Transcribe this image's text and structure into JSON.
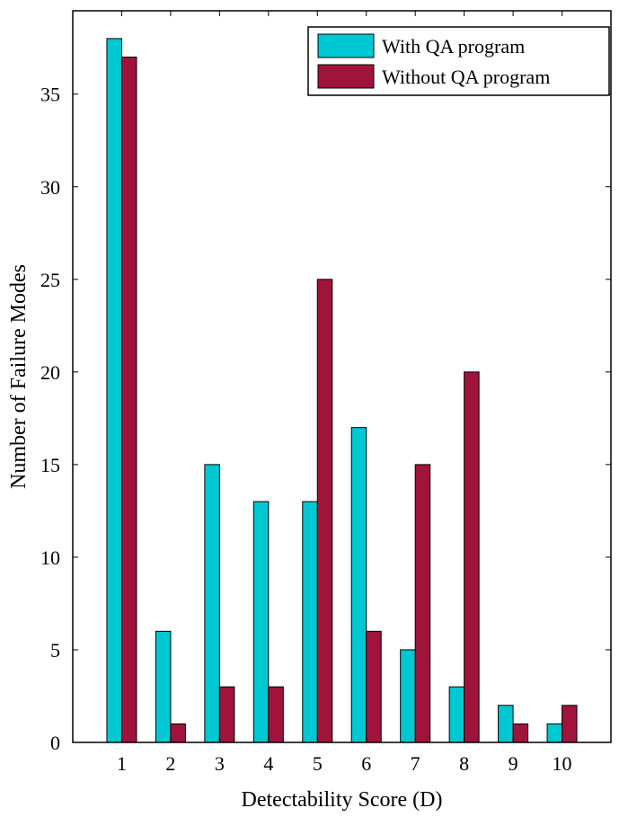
{
  "chart_data": {
    "type": "bar",
    "categories": [
      "1",
      "2",
      "3",
      "4",
      "5",
      "6",
      "7",
      "8",
      "9",
      "10"
    ],
    "series": [
      {
        "name": "With QA program",
        "color": "#00c8d2",
        "values": [
          38,
          6,
          15,
          13,
          13,
          17,
          5,
          3,
          2,
          1
        ]
      },
      {
        "name": "Without QA program",
        "color": "#a0143c",
        "values": [
          37,
          1,
          3,
          3,
          25,
          6,
          15,
          20,
          1,
          2
        ]
      }
    ],
    "xlabel": "Detectability Score (D)",
    "ylabel": "Number of Failure Modes",
    "ylim": [
      0,
      39.5
    ],
    "yticks": [
      0,
      5,
      10,
      15,
      20,
      25,
      30,
      35
    ],
    "legend_position": "top-right",
    "grid": false
  }
}
